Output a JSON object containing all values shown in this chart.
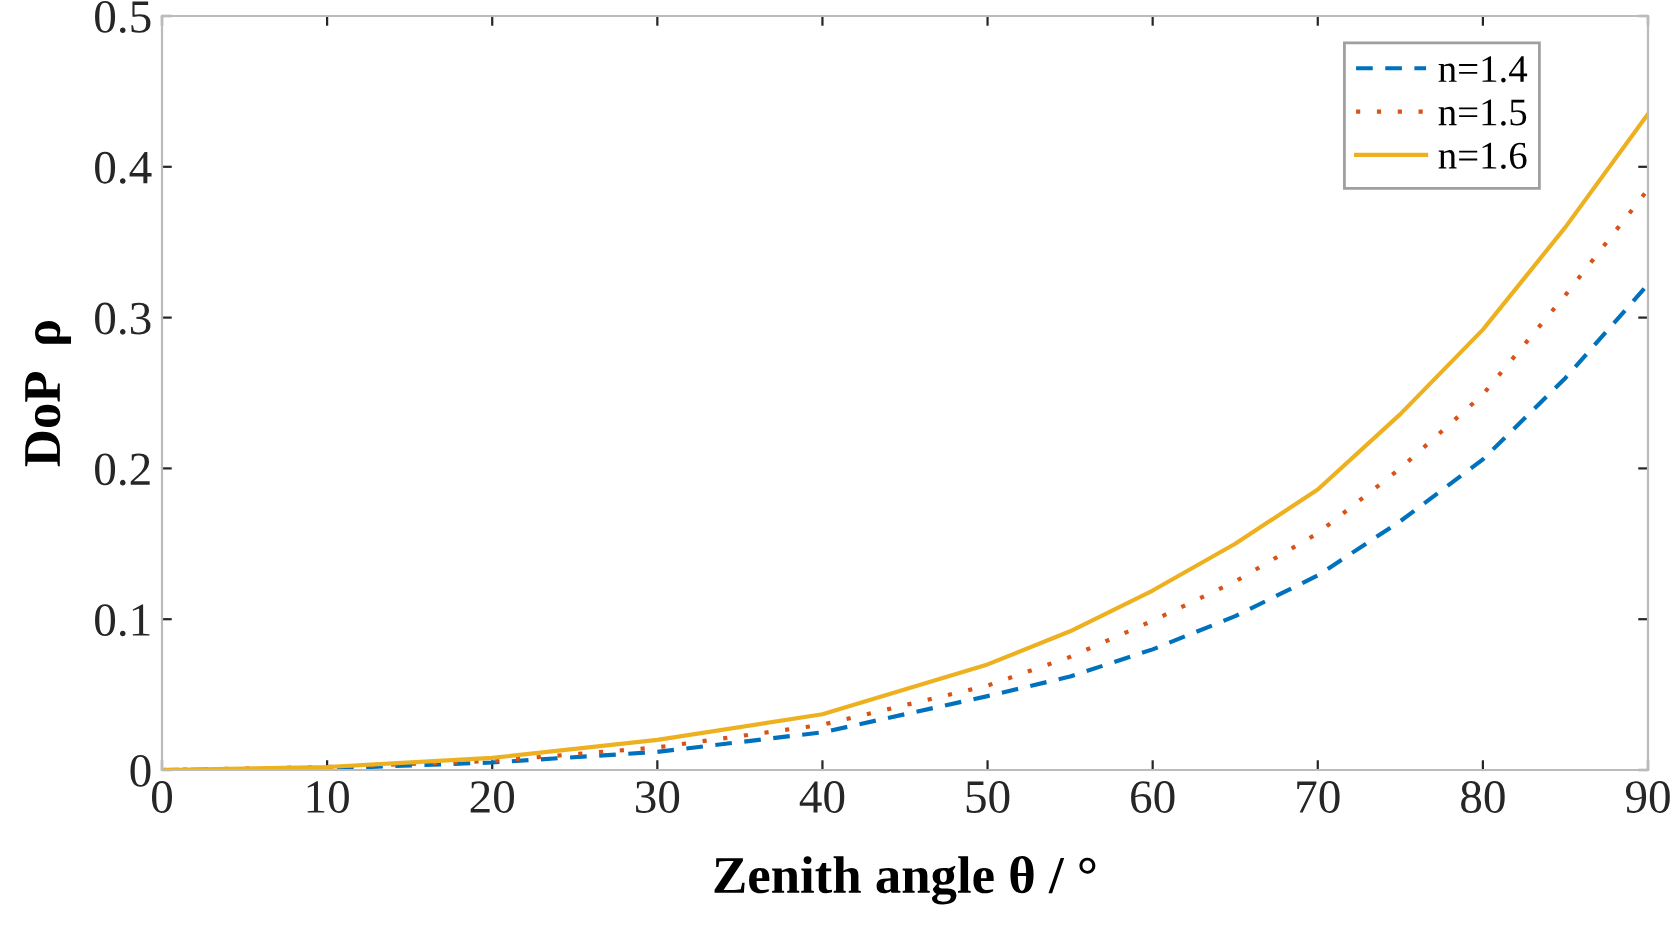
{
  "chart_data": {
    "type": "line",
    "xlabel": "Zenith angle θ / °",
    "ylabel": "DoP  ρ",
    "x": [
      0,
      10,
      20,
      30,
      40,
      50,
      55,
      60,
      65,
      70,
      75,
      80,
      85,
      90
    ],
    "series": [
      {
        "name": "n=1.4",
        "color": "#0072bd",
        "line_style": "dashed",
        "values": [
          0,
          0.001,
          0.005,
          0.012,
          0.025,
          0.049,
          0.062,
          0.08,
          0.102,
          0.129,
          0.165,
          0.206,
          0.26,
          0.322
        ]
      },
      {
        "name": "n=1.5",
        "color": "#d95319",
        "line_style": "dotted",
        "values": [
          0,
          0.002,
          0.006,
          0.015,
          0.03,
          0.056,
          0.075,
          0.099,
          0.125,
          0.157,
          0.2,
          0.249,
          0.315,
          0.385
        ]
      },
      {
        "name": "n=1.6",
        "color": "#edb120",
        "line_style": "solid",
        "values": [
          0,
          0.002,
          0.008,
          0.02,
          0.037,
          0.07,
          0.092,
          0.119,
          0.15,
          0.186,
          0.236,
          0.292,
          0.36,
          0.435
        ]
      }
    ],
    "xlim": [
      0,
      90
    ],
    "xticks": [
      0,
      10,
      20,
      30,
      40,
      50,
      60,
      70,
      80,
      90
    ],
    "ylim": [
      0,
      0.5
    ],
    "yticks": [
      0,
      0.1,
      0.2,
      0.3,
      0.4,
      0.5
    ],
    "grid": false,
    "legend": "top right",
    "marker": "none"
  }
}
